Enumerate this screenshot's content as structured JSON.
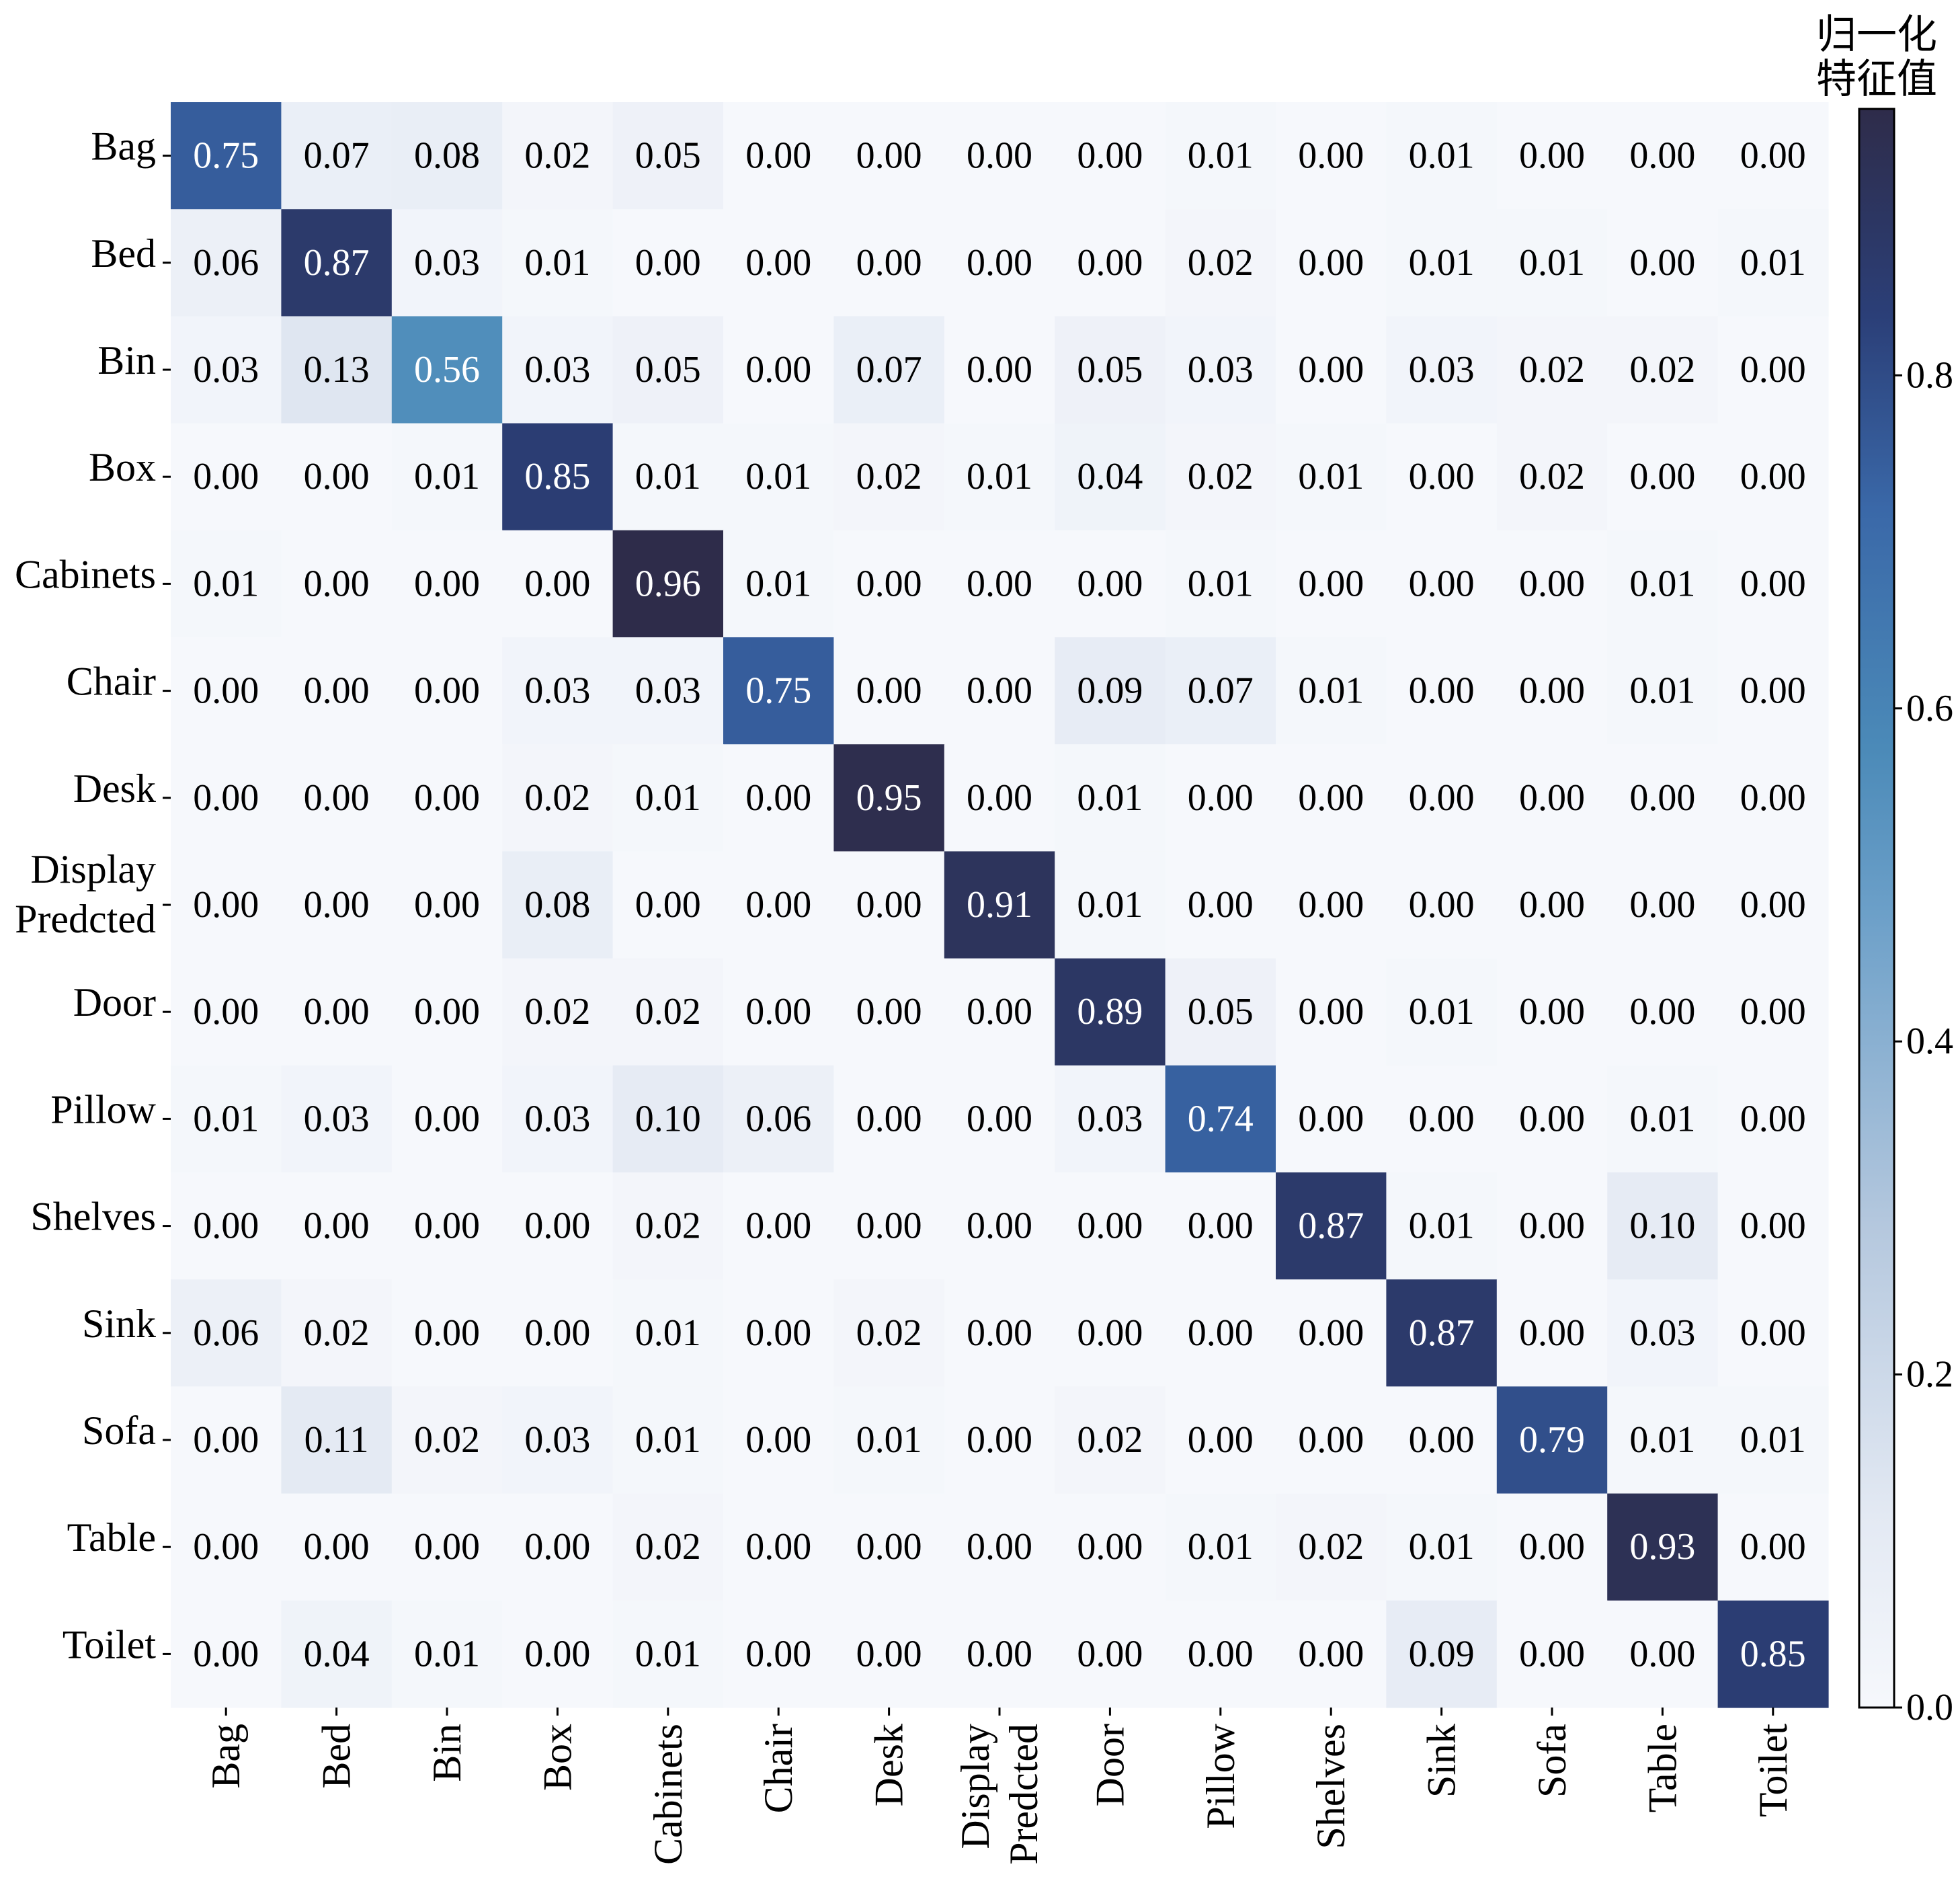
{
  "chart_data": {
    "type": "heatmap",
    "title": "",
    "xlabel": "",
    "ylabel": "",
    "row_labels": [
      [
        "Bag"
      ],
      [
        "Bed"
      ],
      [
        "Bin"
      ],
      [
        "Box"
      ],
      [
        "Cabinets"
      ],
      [
        "Chair"
      ],
      [
        "Desk"
      ],
      [
        "Display",
        "Predcted"
      ],
      [
        "Door"
      ],
      [
        "Pillow"
      ],
      [
        "Shelves"
      ],
      [
        "Sink"
      ],
      [
        "Sofa"
      ],
      [
        "Table"
      ],
      [
        "Toilet"
      ]
    ],
    "col_labels": [
      [
        "Bag"
      ],
      [
        "Bed"
      ],
      [
        "Bin"
      ],
      [
        "Box"
      ],
      [
        "Cabinets"
      ],
      [
        "Chair"
      ],
      [
        "Desk"
      ],
      [
        "Display",
        "Predcted"
      ],
      [
        "Door"
      ],
      [
        "Pillow"
      ],
      [
        "Shelves"
      ],
      [
        "Sink"
      ],
      [
        "Sofa"
      ],
      [
        "Table"
      ],
      [
        "Toilet"
      ]
    ],
    "values": [
      [
        0.75,
        0.07,
        0.08,
        0.02,
        0.05,
        0.0,
        0.0,
        0.0,
        0.0,
        0.01,
        0.0,
        0.01,
        0.0,
        0.0,
        0.0
      ],
      [
        0.06,
        0.87,
        0.03,
        0.01,
        0.0,
        0.0,
        0.0,
        0.0,
        0.0,
        0.02,
        0.0,
        0.01,
        0.01,
        0.0,
        0.01
      ],
      [
        0.03,
        0.13,
        0.56,
        0.03,
        0.05,
        0.0,
        0.07,
        0.0,
        0.05,
        0.03,
        0.0,
        0.03,
        0.02,
        0.02,
        0.0
      ],
      [
        0.0,
        0.0,
        0.01,
        0.85,
        0.01,
        0.01,
        0.02,
        0.01,
        0.04,
        0.02,
        0.01,
        0.0,
        0.02,
        0.0,
        0.0
      ],
      [
        0.01,
        0.0,
        0.0,
        0.0,
        0.96,
        0.01,
        0.0,
        0.0,
        0.0,
        0.01,
        0.0,
        0.0,
        0.0,
        0.01,
        0.0
      ],
      [
        0.0,
        0.0,
        0.0,
        0.03,
        0.03,
        0.75,
        0.0,
        0.0,
        0.09,
        0.07,
        0.01,
        0.0,
        0.0,
        0.01,
        0.0
      ],
      [
        0.0,
        0.0,
        0.0,
        0.02,
        0.01,
        0.0,
        0.95,
        0.0,
        0.01,
        0.0,
        0.0,
        0.0,
        0.0,
        0.0,
        0.0
      ],
      [
        0.0,
        0.0,
        0.0,
        0.08,
        0.0,
        0.0,
        0.0,
        0.91,
        0.01,
        0.0,
        0.0,
        0.0,
        0.0,
        0.0,
        0.0
      ],
      [
        0.0,
        0.0,
        0.0,
        0.02,
        0.02,
        0.0,
        0.0,
        0.0,
        0.89,
        0.05,
        0.0,
        0.01,
        0.0,
        0.0,
        0.0
      ],
      [
        0.01,
        0.03,
        0.0,
        0.03,
        0.1,
        0.06,
        0.0,
        0.0,
        0.03,
        0.74,
        0.0,
        0.0,
        0.0,
        0.01,
        0.0
      ],
      [
        0.0,
        0.0,
        0.0,
        0.0,
        0.02,
        0.0,
        0.0,
        0.0,
        0.0,
        0.0,
        0.87,
        0.01,
        0.0,
        0.1,
        0.0
      ],
      [
        0.06,
        0.02,
        0.0,
        0.0,
        0.01,
        0.0,
        0.02,
        0.0,
        0.0,
        0.0,
        0.0,
        0.87,
        0.0,
        0.03,
        0.0
      ],
      [
        0.0,
        0.11,
        0.02,
        0.03,
        0.01,
        0.0,
        0.01,
        0.0,
        0.02,
        0.0,
        0.0,
        0.0,
        0.79,
        0.01,
        0.01
      ],
      [
        0.0,
        0.0,
        0.0,
        0.0,
        0.02,
        0.0,
        0.0,
        0.0,
        0.0,
        0.01,
        0.02,
        0.01,
        0.0,
        0.93,
        0.0
      ],
      [
        0.0,
        0.04,
        0.01,
        0.0,
        0.01,
        0.0,
        0.0,
        0.0,
        0.0,
        0.0,
        0.0,
        0.09,
        0.0,
        0.0,
        0.85
      ]
    ],
    "value_format": "0.00",
    "colorbar": {
      "title_lines": [
        "归一化",
        "特征值"
      ],
      "range": [
        0.0,
        0.96
      ],
      "ticks": [
        0.0,
        0.2,
        0.4,
        0.6,
        0.8
      ],
      "tick_labels": [
        "0.0",
        "0.2",
        "0.4",
        "0.6",
        "0.8"
      ],
      "colormap_stops": [
        {
          "v": 0.0,
          "color": "#f6f8fc"
        },
        {
          "v": 0.12,
          "color": "#e3e9f3"
        },
        {
          "v": 0.3,
          "color": "#b5c8de"
        },
        {
          "v": 0.5,
          "color": "#6b9fc8"
        },
        {
          "v": 0.6,
          "color": "#4b8ab8"
        },
        {
          "v": 0.75,
          "color": "#3a68a8"
        },
        {
          "v": 0.87,
          "color": "#2b3f78"
        },
        {
          "v": 1.0,
          "color": "#2e2c4a"
        }
      ]
    },
    "text_color_light": "#ffffff",
    "text_color_dark": "#000000",
    "text_color_threshold": 0.5
  }
}
